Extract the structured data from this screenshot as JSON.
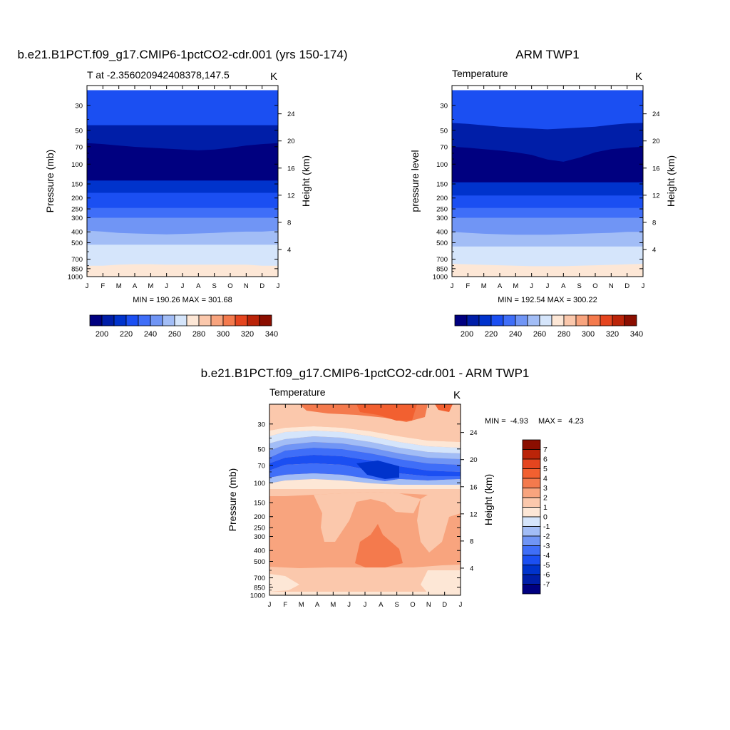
{
  "chart_data": [
    {
      "type": "heatmap",
      "title": "b.e21.B1PCT.f09_g17.CMIP6-1pctCO2-cdr.001 (yrs 150-174)",
      "subtitle": "T at -2.356020942408378,147.5",
      "units": "K",
      "ylabel": "Pressure (mb)",
      "y2label": "Height (km)",
      "months": [
        "J",
        "F",
        "M",
        "A",
        "M",
        "J",
        "J",
        "A",
        "S",
        "O",
        "N",
        "D",
        "J"
      ],
      "pressure_ticks": [
        30,
        50,
        70,
        100,
        150,
        200,
        250,
        300,
        400,
        500,
        700,
        850,
        1000
      ],
      "height_ticks": [
        24,
        20,
        16,
        12,
        8,
        4
      ],
      "stats": "MIN = 190.26 MAX = 301.68",
      "colorbar_labels": [
        "200",
        "220",
        "240",
        "260",
        "280",
        "300",
        "320",
        "340"
      ],
      "band_top_pressures": [
        22,
        45,
        65,
        140,
        180,
        245,
        300,
        390,
        520,
        800,
        1000
      ]
    },
    {
      "type": "heatmap",
      "title": "ARM TWP1",
      "subtitle": "Temperature",
      "units": "K",
      "ylabel": "pressure level",
      "y2label": "Height (km)",
      "months": [
        "J",
        "F",
        "M",
        "A",
        "M",
        "J",
        "J",
        "A",
        "S",
        "O",
        "N",
        "D",
        "J"
      ],
      "pressure_ticks": [
        30,
        50,
        70,
        100,
        150,
        200,
        250,
        300,
        400,
        500,
        700,
        850,
        1000
      ],
      "height_ticks": [
        24,
        20,
        16,
        12,
        8,
        4
      ],
      "stats": "MIN = 192.54 MAX = 300.22",
      "colorbar_labels": [
        "200",
        "220",
        "240",
        "260",
        "280",
        "300",
        "320",
        "340"
      ],
      "band_top_pressures": [
        22,
        43,
        70,
        145,
        190,
        245,
        300,
        400,
        540,
        770,
        1000
      ]
    },
    {
      "type": "heatmap",
      "title": "b.e21.B1PCT.f09_g17.CMIP6-1pctCO2-cdr.001 - ARM TWP1",
      "subtitle": "Temperature",
      "units": "K",
      "ylabel": "Pressure (mb)",
      "y2label": "Height (km)",
      "months": [
        "J",
        "F",
        "M",
        "A",
        "M",
        "J",
        "J",
        "A",
        "S",
        "O",
        "N",
        "D",
        "J"
      ],
      "pressure_ticks": [
        30,
        50,
        70,
        100,
        150,
        200,
        250,
        300,
        400,
        500,
        700,
        850,
        1000
      ],
      "height_ticks": [
        24,
        20,
        16,
        12,
        8,
        4
      ],
      "stats_min": "MIN =  -4.93",
      "stats_max": "MAX =   4.23",
      "colorbar_labels": [
        "7",
        "6",
        "5",
        "4",
        "3",
        "2",
        "1",
        "0",
        "-1",
        "-2",
        "-3",
        "-4",
        "-5",
        "-6",
        "-7"
      ]
    }
  ],
  "palette": {
    "temperature": [
      "#000080",
      "#001ea8",
      "#0033cc",
      "#1b4ff2",
      "#3f6ef8",
      "#7095f5",
      "#a2bdf6",
      "#d5e5fb",
      "#fde7d6",
      "#fbc8ac",
      "#f8a47e",
      "#f47a4d",
      "#e5451f",
      "#bb2409",
      "#8b0e00"
    ],
    "difference": [
      "#000080",
      "#001ea8",
      "#0033cc",
      "#1b4ff2",
      "#3f6ef8",
      "#7095f5",
      "#a2bdf6",
      "#d5e5fb",
      "#fde7d6",
      "#fbc8ac",
      "#f8a47e",
      "#f47a4d",
      "#f26030",
      "#e5451f",
      "#bb2409",
      "#8b0e00"
    ]
  }
}
